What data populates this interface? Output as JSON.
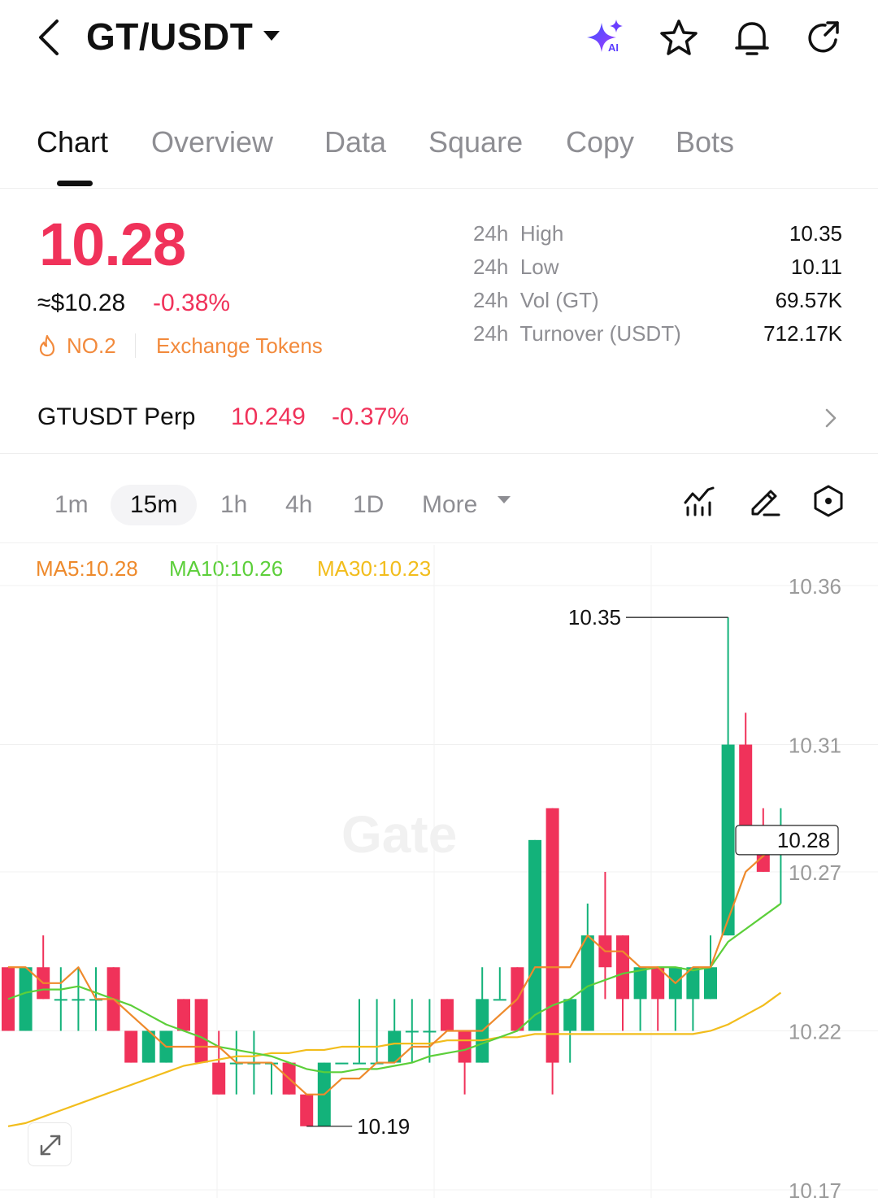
{
  "header": {
    "pair": "GT/USDT",
    "icons": [
      "back-icon",
      "ai-sparkle-icon",
      "star-icon",
      "bell-icon",
      "share-icon"
    ],
    "ai_badge": "AI"
  },
  "tabs": [
    {
      "label": "Chart",
      "active": true
    },
    {
      "label": "Overview",
      "active": false
    },
    {
      "label": "Data",
      "active": false
    },
    {
      "label": "Square",
      "active": false
    },
    {
      "label": "Copy",
      "active": false
    },
    {
      "label": "Bots",
      "active": false
    }
  ],
  "price": {
    "last": "10.28",
    "usd": "≈$10.28",
    "change": "-0.38%",
    "rank": "NO.2",
    "category": "Exchange Tokens"
  },
  "stats": [
    {
      "label": "24h  High",
      "value": "10.35"
    },
    {
      "label": "24h  Low",
      "value": "10.11"
    },
    {
      "label": "24h  Vol (GT)",
      "value": "69.57K"
    },
    {
      "label": "24h  Turnover (USDT)",
      "value": "712.17K"
    }
  ],
  "perp": {
    "name": "GTUSDT Perp",
    "price": "10.249",
    "change": "-0.37%"
  },
  "intervals": [
    {
      "label": "1m",
      "active": false
    },
    {
      "label": "15m",
      "active": true
    },
    {
      "label": "1h",
      "active": false
    },
    {
      "label": "4h",
      "active": false
    },
    {
      "label": "1D",
      "active": false
    },
    {
      "label": "More",
      "active": false
    }
  ],
  "chart_tools": [
    "indicator-icon",
    "draw-pencil-icon",
    "settings-hexagon-icon"
  ],
  "colors": {
    "up": "#13b27a",
    "down": "#f0325a",
    "ma5": "#ee8a2c",
    "ma10": "#5ccf3a",
    "ma30": "#f2bd1c",
    "accent_orange": "#f28a3c"
  },
  "chart_data": {
    "type": "candlestick",
    "interval": "15m",
    "ma_legend": {
      "ma5": "MA5:10.28",
      "ma10": "MA10:10.26",
      "ma30": "MA30:10.23"
    },
    "y_ticks": [
      "10.36",
      "10.31",
      "10.27",
      "10.22",
      "10.17"
    ],
    "ylim": [
      10.17,
      10.36
    ],
    "current_price_label": "10.28",
    "high_marker": "10.35",
    "low_marker": "10.19",
    "watermark": "Gate",
    "candles": [
      {
        "o": 10.24,
        "h": 10.24,
        "l": 10.22,
        "c": 10.22
      },
      {
        "o": 10.22,
        "h": 10.24,
        "l": 10.22,
        "c": 10.24
      },
      {
        "o": 10.24,
        "h": 10.25,
        "l": 10.23,
        "c": 10.23
      },
      {
        "o": 10.23,
        "h": 10.24,
        "l": 10.22,
        "c": 10.23
      },
      {
        "o": 10.23,
        "h": 10.24,
        "l": 10.22,
        "c": 10.23
      },
      {
        "o": 10.23,
        "h": 10.24,
        "l": 10.22,
        "c": 10.23
      },
      {
        "o": 10.24,
        "h": 10.24,
        "l": 10.22,
        "c": 10.22
      },
      {
        "o": 10.22,
        "h": 10.22,
        "l": 10.21,
        "c": 10.21
      },
      {
        "o": 10.21,
        "h": 10.22,
        "l": 10.21,
        "c": 10.22
      },
      {
        "o": 10.21,
        "h": 10.22,
        "l": 10.21,
        "c": 10.22
      },
      {
        "o": 10.23,
        "h": 10.23,
        "l": 10.22,
        "c": 10.22
      },
      {
        "o": 10.23,
        "h": 10.23,
        "l": 10.21,
        "c": 10.21
      },
      {
        "o": 10.21,
        "h": 10.22,
        "l": 10.2,
        "c": 10.2
      },
      {
        "o": 10.21,
        "h": 10.22,
        "l": 10.2,
        "c": 10.21
      },
      {
        "o": 10.21,
        "h": 10.22,
        "l": 10.2,
        "c": 10.21
      },
      {
        "o": 10.21,
        "h": 10.21,
        "l": 10.2,
        "c": 10.21
      },
      {
        "o": 10.21,
        "h": 10.21,
        "l": 10.2,
        "c": 10.2
      },
      {
        "o": 10.2,
        "h": 10.2,
        "l": 10.19,
        "c": 10.19
      },
      {
        "o": 10.19,
        "h": 10.21,
        "l": 10.19,
        "c": 10.21
      },
      {
        "o": 10.21,
        "h": 10.21,
        "l": 10.21,
        "c": 10.21
      },
      {
        "o": 10.21,
        "h": 10.23,
        "l": 10.21,
        "c": 10.21
      },
      {
        "o": 10.21,
        "h": 10.23,
        "l": 10.21,
        "c": 10.21
      },
      {
        "o": 10.21,
        "h": 10.23,
        "l": 10.21,
        "c": 10.22
      },
      {
        "o": 10.22,
        "h": 10.23,
        "l": 10.21,
        "c": 10.22
      },
      {
        "o": 10.22,
        "h": 10.23,
        "l": 10.21,
        "c": 10.22
      },
      {
        "o": 10.23,
        "h": 10.23,
        "l": 10.22,
        "c": 10.22
      },
      {
        "o": 10.22,
        "h": 10.22,
        "l": 10.2,
        "c": 10.21
      },
      {
        "o": 10.21,
        "h": 10.24,
        "l": 10.21,
        "c": 10.23
      },
      {
        "o": 10.23,
        "h": 10.24,
        "l": 10.23,
        "c": 10.23
      },
      {
        "o": 10.24,
        "h": 10.24,
        "l": 10.22,
        "c": 10.22
      },
      {
        "o": 10.22,
        "h": 10.28,
        "l": 10.22,
        "c": 10.28
      },
      {
        "o": 10.29,
        "h": 10.29,
        "l": 10.2,
        "c": 10.21
      },
      {
        "o": 10.22,
        "h": 10.23,
        "l": 10.21,
        "c": 10.23
      },
      {
        "o": 10.22,
        "h": 10.26,
        "l": 10.22,
        "c": 10.25
      },
      {
        "o": 10.25,
        "h": 10.27,
        "l": 10.23,
        "c": 10.24
      },
      {
        "o": 10.25,
        "h": 10.25,
        "l": 10.22,
        "c": 10.23
      },
      {
        "o": 10.23,
        "h": 10.24,
        "l": 10.22,
        "c": 10.24
      },
      {
        "o": 10.24,
        "h": 10.24,
        "l": 10.22,
        "c": 10.23
      },
      {
        "o": 10.23,
        "h": 10.24,
        "l": 10.22,
        "c": 10.24
      },
      {
        "o": 10.23,
        "h": 10.24,
        "l": 10.22,
        "c": 10.24
      },
      {
        "o": 10.23,
        "h": 10.25,
        "l": 10.23,
        "c": 10.24
      },
      {
        "o": 10.25,
        "h": 10.35,
        "l": 10.25,
        "c": 10.31
      },
      {
        "o": 10.31,
        "h": 10.32,
        "l": 10.28,
        "c": 10.28
      },
      {
        "o": 10.28,
        "h": 10.29,
        "l": 10.27,
        "c": 10.27
      },
      {
        "o": 10.28,
        "h": 10.29,
        "l": 10.26,
        "c": 10.28
      }
    ],
    "ma5": [
      10.24,
      10.24,
      10.235,
      10.235,
      10.24,
      10.23,
      10.23,
      10.225,
      10.22,
      10.215,
      10.215,
      10.215,
      10.215,
      10.21,
      10.21,
      10.21,
      10.205,
      10.2,
      10.2,
      10.205,
      10.205,
      10.21,
      10.21,
      10.215,
      10.215,
      10.22,
      10.22,
      10.22,
      10.225,
      10.23,
      10.24,
      10.24,
      10.24,
      10.25,
      10.245,
      10.245,
      10.24,
      10.24,
      10.235,
      10.24,
      10.24,
      10.255,
      10.27,
      10.275,
      10.28
    ],
    "ma10": [
      10.23,
      10.232,
      10.233,
      10.233,
      10.234,
      10.232,
      10.23,
      10.228,
      10.225,
      10.222,
      10.22,
      10.218,
      10.215,
      10.214,
      10.213,
      10.212,
      10.21,
      10.208,
      10.207,
      10.207,
      10.208,
      10.208,
      10.209,
      10.21,
      10.212,
      10.213,
      10.214,
      10.216,
      10.218,
      10.22,
      10.225,
      10.228,
      10.23,
      10.234,
      10.236,
      10.238,
      10.239,
      10.24,
      10.24,
      10.239,
      10.24,
      10.248,
      10.252,
      10.256,
      10.26
    ],
    "ma30": [
      10.19,
      10.191,
      10.193,
      10.195,
      10.197,
      10.199,
      10.201,
      10.203,
      10.205,
      10.207,
      10.209,
      10.21,
      10.211,
      10.212,
      10.212,
      10.213,
      10.213,
      10.214,
      10.214,
      10.215,
      10.215,
      10.215,
      10.216,
      10.216,
      10.216,
      10.217,
      10.217,
      10.217,
      10.218,
      10.218,
      10.219,
      10.219,
      10.219,
      10.219,
      10.219,
      10.219,
      10.219,
      10.219,
      10.219,
      10.219,
      10.22,
      10.222,
      10.225,
      10.228,
      10.232
    ]
  }
}
